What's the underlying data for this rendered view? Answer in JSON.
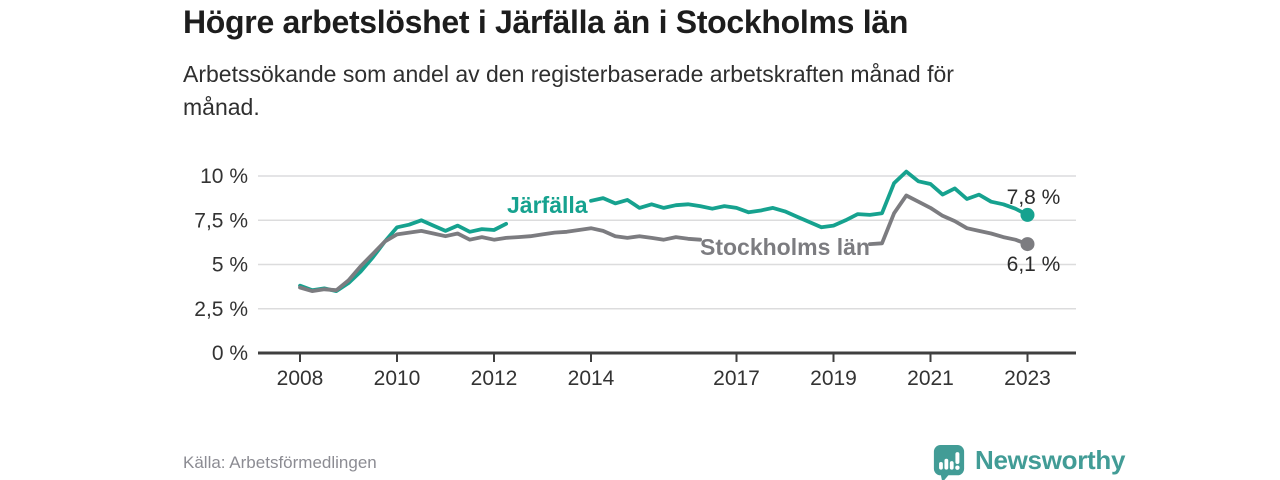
{
  "header": {
    "title": "Högre arbetslöshet i Järfälla än i Stockholms län",
    "subtitle": "Arbetssökande som andel av den registerbaserade arbetskraften månad för\nmånad."
  },
  "footer": {
    "source": "Källa: Arbetsförmedlingen",
    "brand_name": "Newsworthy",
    "brand_icon": "bar-chart-speech-bubble-icon"
  },
  "colors": {
    "jarfalla": "#16a28f",
    "stockholm": "#7c7c80",
    "grid": "#dcdcdd",
    "axis": "#3f3f3f",
    "tick_text": "#333333",
    "value_text": "#2b2b2b",
    "title_text": "#1d1d1d",
    "subtitle_text": "#2f2f2f",
    "source_text": "#8c8c93",
    "brand": "#429c96"
  },
  "chart_data": {
    "type": "line",
    "title": "Högre arbetslöshet i Järfälla än i Stockholms län",
    "subtitle": "Arbetssökande som andel av den registerbaserade arbetskraften månad för månad.",
    "unit": "%",
    "grid": true,
    "x_start": 2008.0,
    "x_step": 0.25,
    "xlim": [
      2007.2,
      2024.0
    ],
    "ylim": [
      0,
      10.9
    ],
    "yticks": [
      0,
      2.5,
      5,
      7.5,
      10
    ],
    "ytick_labels": [
      "0 %",
      "2,5 %",
      "5 %",
      "7,5 %",
      "10 %"
    ],
    "xticks": [
      2008,
      2010,
      2012,
      2014,
      2017,
      2019,
      2021,
      2023
    ],
    "xtick_labels": [
      "2008",
      "2010",
      "2012",
      "2014",
      "2017",
      "2019",
      "2021",
      "2023"
    ],
    "series": [
      {
        "name": "Järfälla",
        "color": "#16a28f",
        "values": [
          3.8,
          3.55,
          3.65,
          3.5,
          3.95,
          4.6,
          5.4,
          6.3,
          7.1,
          7.25,
          7.5,
          7.2,
          6.9,
          7.2,
          6.85,
          7.0,
          6.95,
          7.3,
          7.6,
          8.0,
          8.3,
          8.45,
          8.4,
          8.55,
          8.6,
          8.75,
          8.45,
          8.65,
          8.2,
          8.4,
          8.2,
          8.35,
          8.4,
          8.3,
          8.15,
          8.3,
          8.2,
          7.95,
          8.05,
          8.2,
          8.0,
          7.7,
          7.4,
          7.1,
          7.2,
          7.5,
          7.85,
          7.8,
          7.9,
          9.6,
          10.25,
          9.7,
          9.55,
          8.95,
          9.3,
          8.7,
          8.95,
          8.55,
          8.4,
          8.15,
          7.8
        ],
        "label_gap_x": [
          2012.3,
          2013.95
        ],
        "inline_label": {
          "text": "Järfälla",
          "x": 2013.1,
          "y": 8.35
        },
        "end_dot": true,
        "end_label": "7,8 %",
        "end_label_position": "above"
      },
      {
        "name": "Stockholms län",
        "color": "#7c7c80",
        "values": [
          3.7,
          3.5,
          3.6,
          3.55,
          4.1,
          4.9,
          5.6,
          6.3,
          6.7,
          6.8,
          6.9,
          6.75,
          6.6,
          6.75,
          6.4,
          6.55,
          6.4,
          6.5,
          6.55,
          6.6,
          6.7,
          6.8,
          6.85,
          6.95,
          7.05,
          6.9,
          6.6,
          6.5,
          6.6,
          6.5,
          6.4,
          6.55,
          6.45,
          6.4,
          6.35,
          6.3,
          6.3,
          6.25,
          6.2,
          6.2,
          6.15,
          6.1,
          6.05,
          6.0,
          6.05,
          6.1,
          6.1,
          6.15,
          6.2,
          7.9,
          8.9,
          8.55,
          8.2,
          7.75,
          7.45,
          7.05,
          6.9,
          6.75,
          6.55,
          6.4,
          6.15
        ],
        "label_gap_x": [
          2016.3,
          2019.7
        ],
        "inline_label": {
          "text": "Stockholms län",
          "x": 2018.0,
          "y": 6.0
        },
        "end_dot": true,
        "end_label": "6,1 %",
        "end_label_position": "below"
      }
    ]
  }
}
